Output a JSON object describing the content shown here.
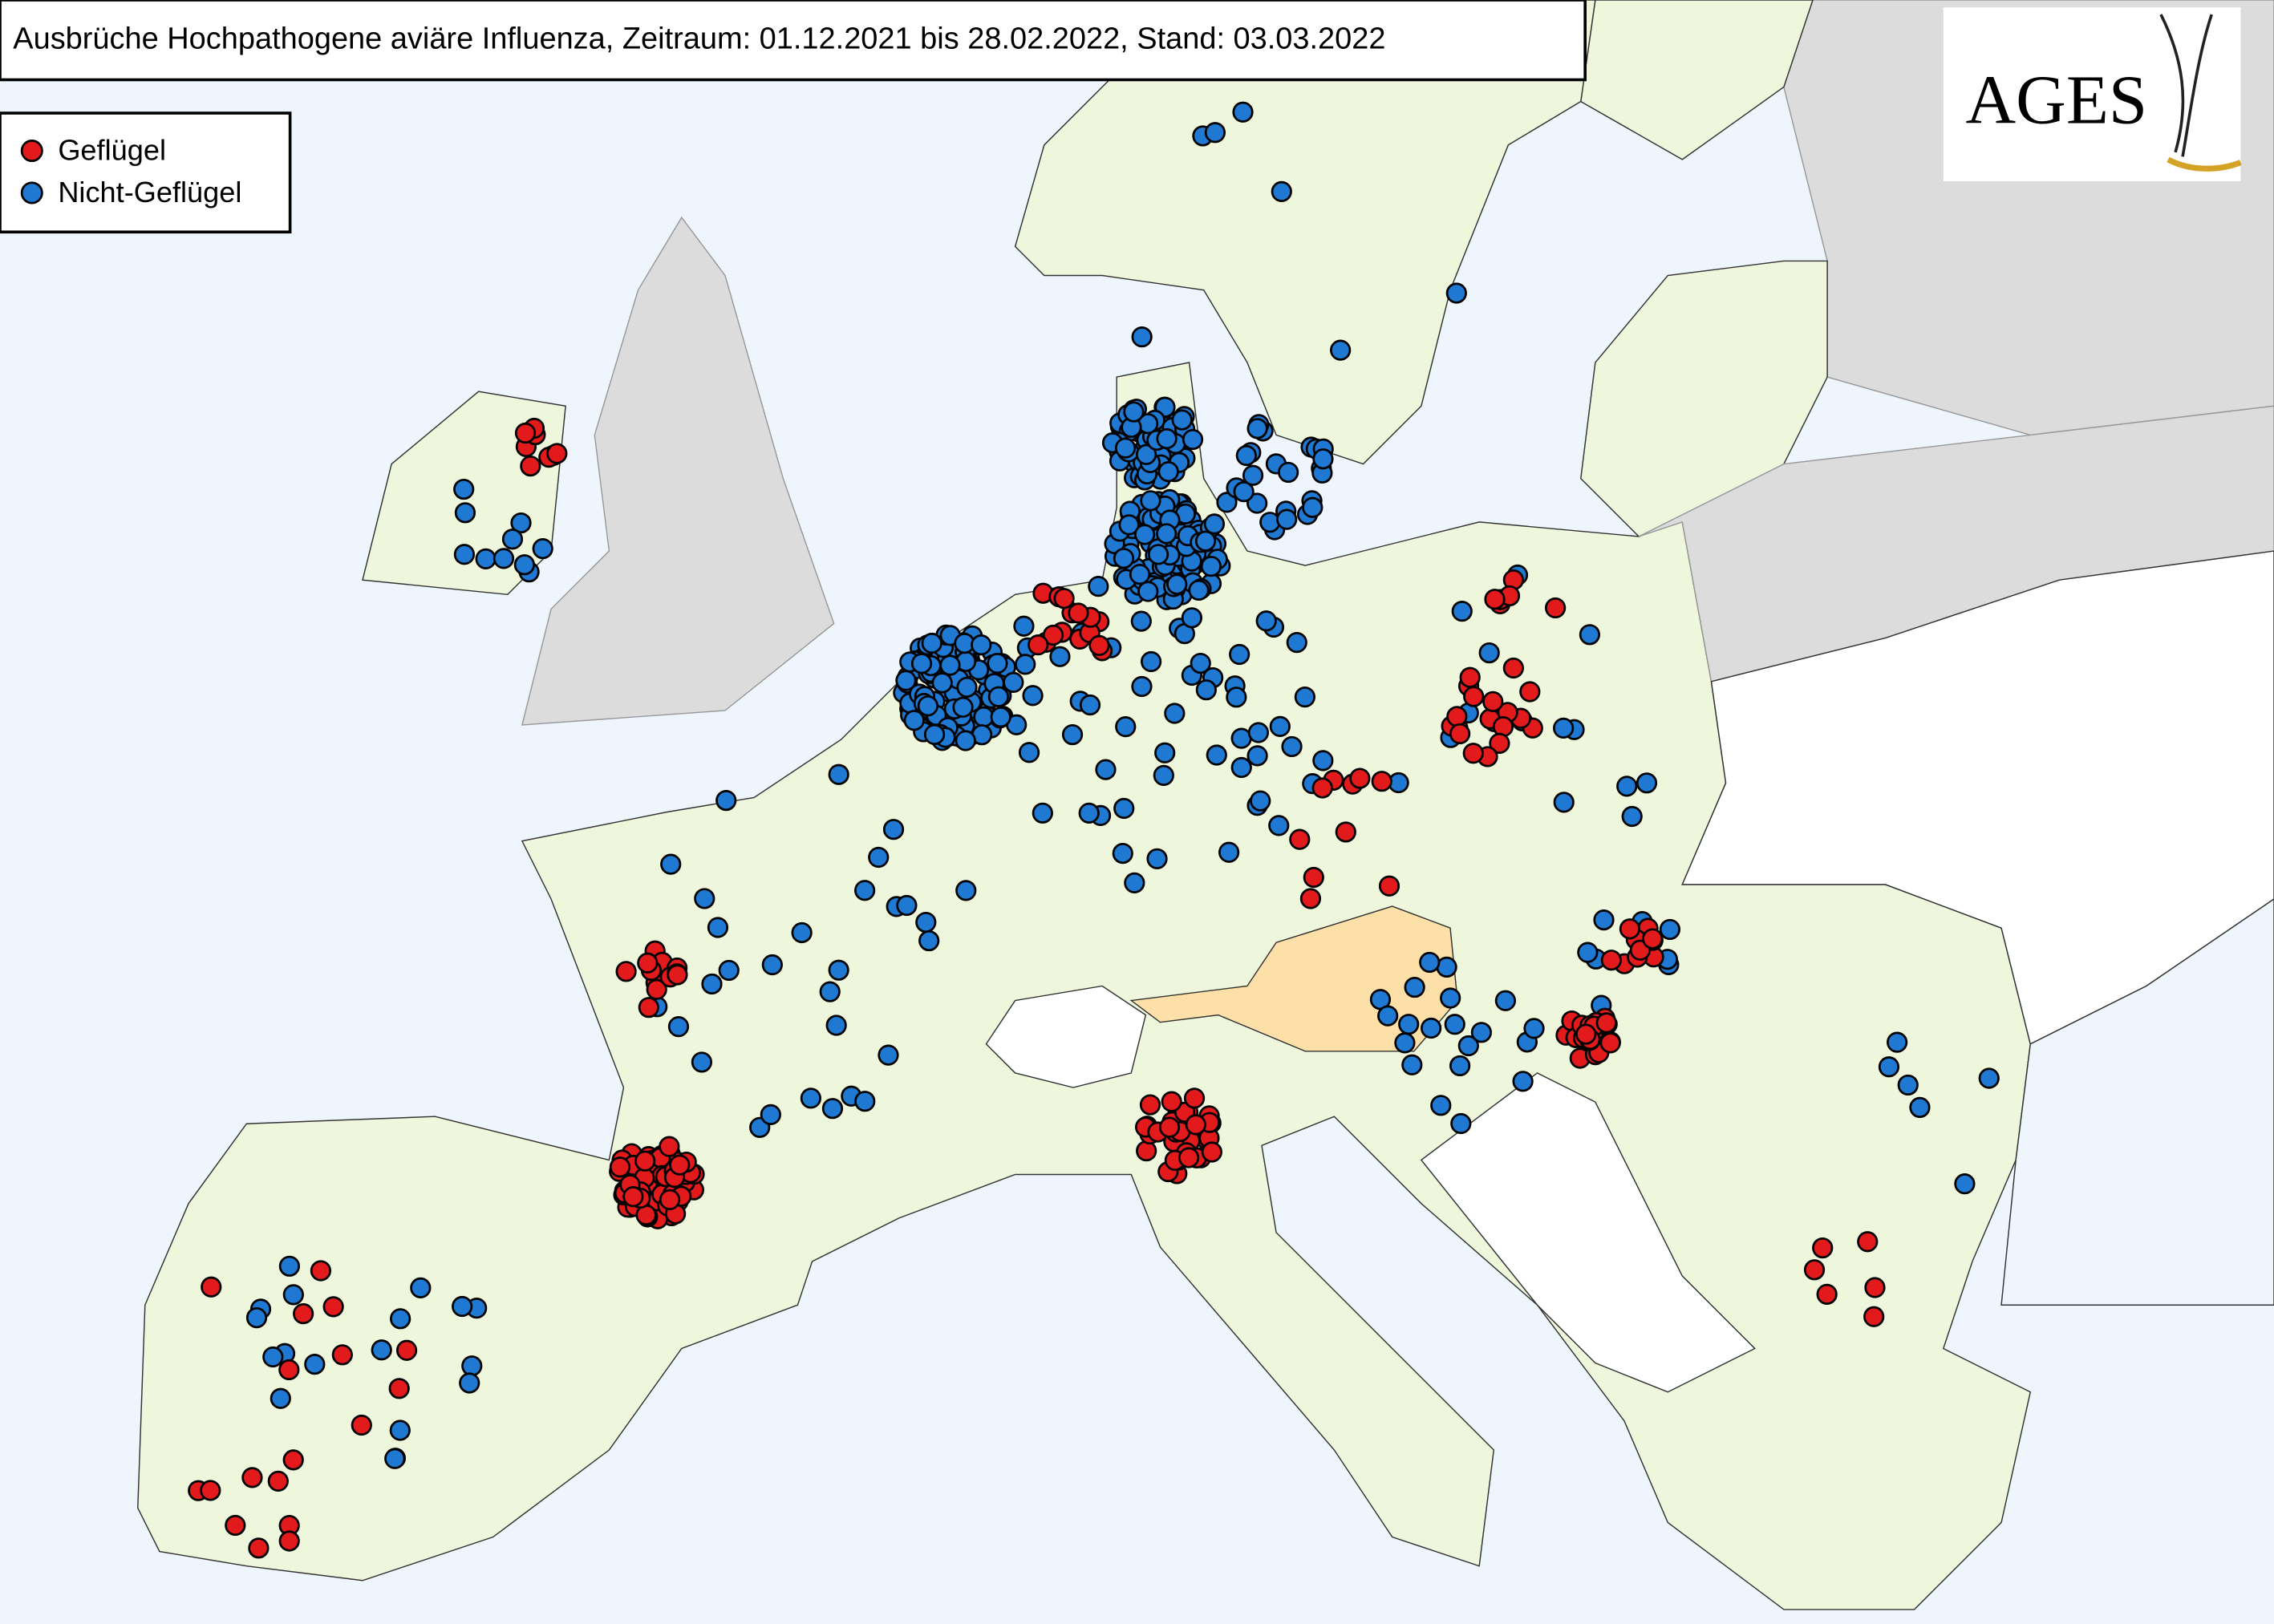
{
  "header": {
    "title": "Ausbrüche Hochpathogene aviäre Influenza, Zeitraum: 01.12.2021 bis 28.02.2022, Stand: 03.03.2022"
  },
  "legend": {
    "items": [
      {
        "label": "Geflügel",
        "color": "#e31a1c"
      },
      {
        "label": "Nicht-Geflügel",
        "color": "#1f78d1"
      }
    ]
  },
  "logo": {
    "text": "AGES"
  }
}
